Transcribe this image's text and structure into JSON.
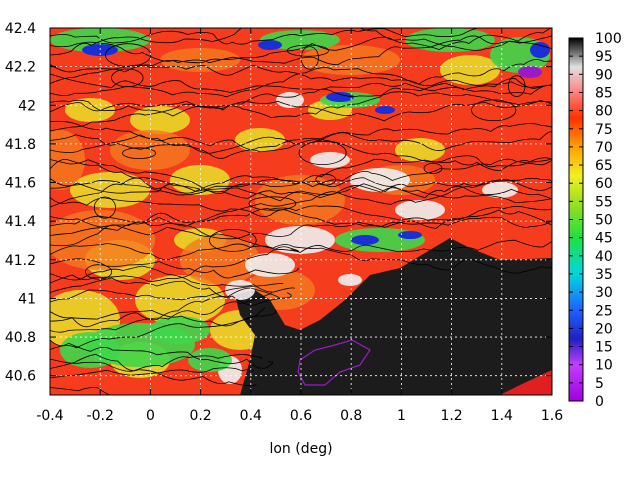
{
  "chart_data": {
    "type": "heatmap",
    "title": "",
    "xlabel": "lon (deg)",
    "ylabel": "",
    "xlim": [
      -0.4,
      1.6
    ],
    "ylim": [
      40.5,
      42.4
    ],
    "x_ticks": [
      -0.4,
      -0.2,
      0,
      0.2,
      0.4,
      0.6,
      0.8,
      1,
      1.2,
      1.4,
      1.6
    ],
    "y_ticks": [
      40.6,
      40.8,
      41,
      41.2,
      41.4,
      41.6,
      41.8,
      42,
      42.2,
      42.4
    ],
    "colorbar": {
      "min": 0,
      "max": 100,
      "ticks": [
        0,
        5,
        10,
        15,
        20,
        25,
        30,
        35,
        40,
        45,
        50,
        55,
        60,
        65,
        70,
        75,
        80,
        85,
        90,
        95,
        100
      ]
    },
    "grid": true,
    "colors": {
      "sea": "#1c1c1c",
      "land_main": "#f53d1e",
      "land_orange": "#f57a1e",
      "land_yellow": "#e8e228",
      "land_green": "#3fd64a",
      "land_white": "#f0f0f0",
      "low_blue": "#1a2fd6",
      "purple": "#9a1ac8"
    }
  }
}
